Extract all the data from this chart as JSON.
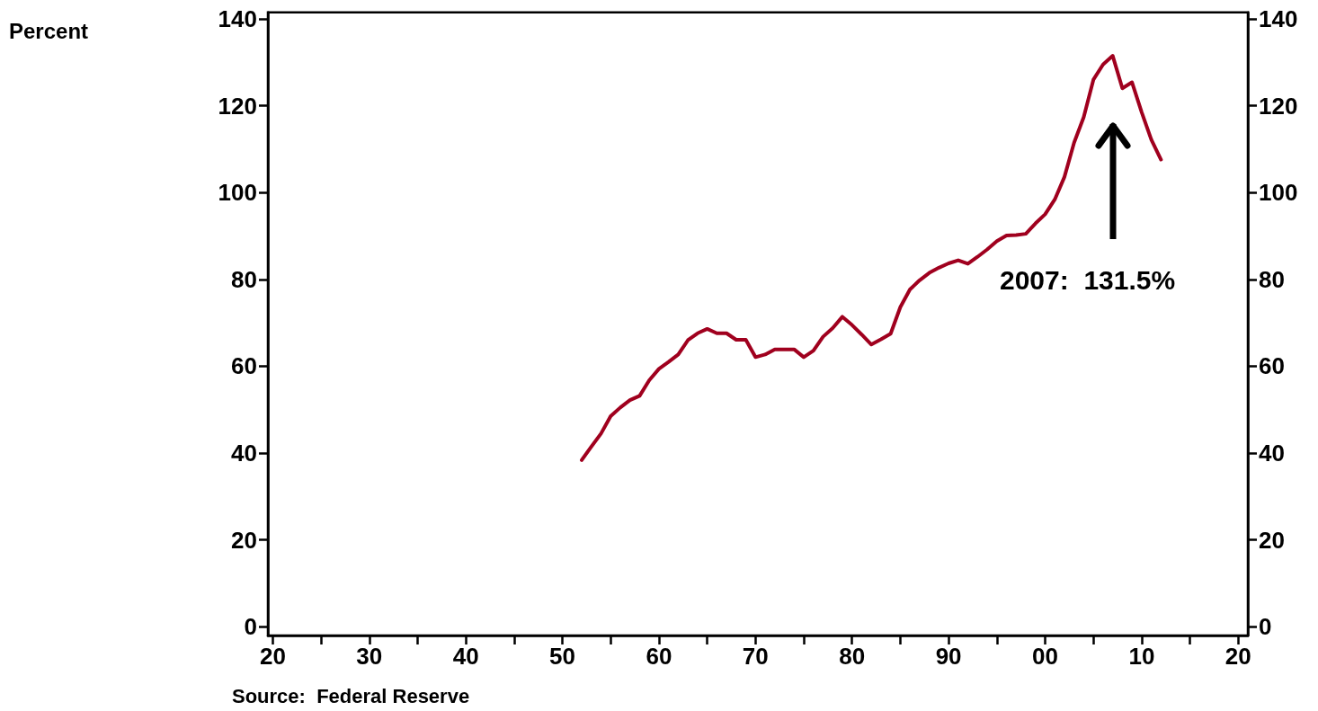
{
  "chart_data": {
    "type": "line",
    "x": [
      1952,
      1953,
      1954,
      1955,
      1956,
      1957,
      1958,
      1959,
      1960,
      1961,
      1962,
      1963,
      1964,
      1965,
      1966,
      1967,
      1968,
      1969,
      1970,
      1971,
      1972,
      1973,
      1974,
      1975,
      1976,
      1977,
      1978,
      1979,
      1980,
      1981,
      1982,
      1983,
      1984,
      1985,
      1986,
      1987,
      1988,
      1989,
      1990,
      1991,
      1992,
      1993,
      1994,
      1995,
      1996,
      1997,
      1998,
      1999,
      2000,
      2001,
      2002,
      2003,
      2004,
      2005,
      2006,
      2007,
      2008,
      2009,
      2010,
      2011,
      2012
    ],
    "series": [
      {
        "color": "#a0001e",
        "values": [
          38.4,
          41.5,
          44.5,
          48.5,
          50.5,
          52.2,
          53.2,
          56.8,
          59.4,
          61,
          62.7,
          66.0,
          67.6,
          68.6,
          67.6,
          67.6,
          66.1,
          66.1,
          62.1,
          62.7,
          63.9,
          63.9,
          63.9,
          62.1,
          63.6,
          66.8,
          68.8,
          71.4,
          69.5,
          67.3,
          65.0,
          66.2,
          67.5,
          73.6,
          77.7,
          79.8,
          81.5,
          82.7,
          83.7,
          84.4,
          83.6,
          85.2,
          86.9,
          88.8,
          90.1,
          90.2,
          90.5,
          92.9,
          95.0,
          98.4,
          103.6,
          111.5,
          117.4,
          126.0,
          129.5,
          131.5,
          124.0,
          125.4,
          118.5,
          112.2,
          107.6
        ]
      }
    ],
    "xlim": [
      1919.5,
      2021
    ],
    "xticks": [
      {
        "value": 1920,
        "label": "20"
      },
      {
        "value": 1925,
        "label": null
      },
      {
        "value": 1930,
        "label": "30"
      },
      {
        "value": 1935,
        "label": null
      },
      {
        "value": 1940,
        "label": "40"
      },
      {
        "value": 1945,
        "label": null
      },
      {
        "value": 1950,
        "label": "50"
      },
      {
        "value": 1955,
        "label": null
      },
      {
        "value": 1960,
        "label": "60"
      },
      {
        "value": 1965,
        "label": null
      },
      {
        "value": 1970,
        "label": "70"
      },
      {
        "value": 1975,
        "label": null
      },
      {
        "value": 1980,
        "label": "80"
      },
      {
        "value": 1985,
        "label": null
      },
      {
        "value": 1990,
        "label": "90"
      },
      {
        "value": 1995,
        "label": null
      },
      {
        "value": 2000,
        "label": "00"
      },
      {
        "value": 2005,
        "label": null
      },
      {
        "value": 2010,
        "label": "10"
      },
      {
        "value": 2015,
        "label": null
      },
      {
        "value": 2020,
        "label": "20"
      }
    ],
    "ylim": [
      -2,
      141.5
    ],
    "yticks": [
      0,
      20,
      40,
      60,
      80,
      100,
      120,
      140
    ],
    "y2lim": [
      -2,
      141.5
    ],
    "y2ticks": [
      0,
      20,
      40,
      60,
      80,
      100,
      120,
      140
    ],
    "annotations": [
      "Percent",
      "2007:  131.5%",
      "Source:  Federal Reserve"
    ],
    "grid": false,
    "marker": "none",
    "line_style": "solid"
  }
}
